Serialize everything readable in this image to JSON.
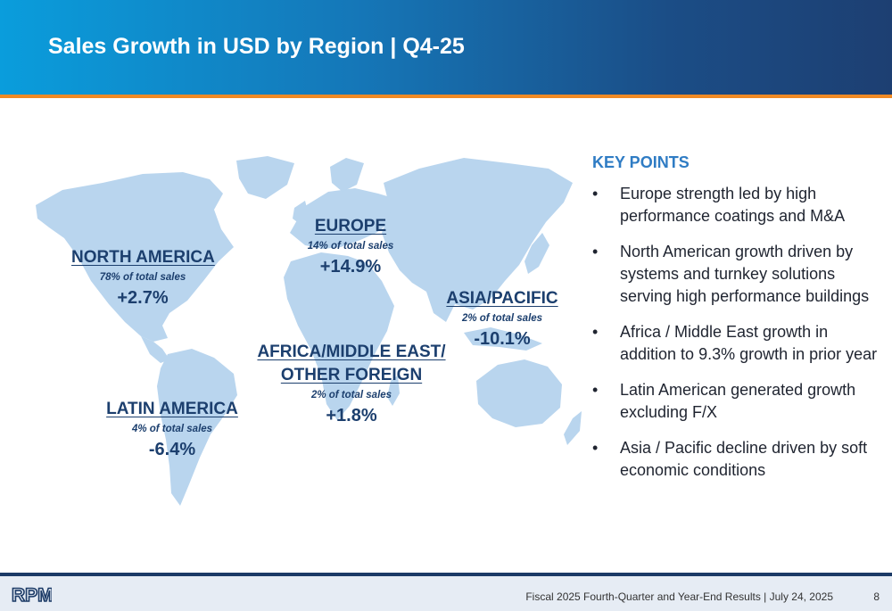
{
  "header": {
    "title": "Sales Growth in USD by Region | Q4-25"
  },
  "regions": [
    {
      "name": "NORTH AMERICA",
      "share": "78% of total sales",
      "growth": "+2.7%"
    },
    {
      "name": "EUROPE",
      "share": "14% of total sales",
      "growth": "+14.9%"
    },
    {
      "name": "ASIA/PACIFIC",
      "share": "2% of total sales",
      "growth": "-10.1%"
    },
    {
      "name_line1": "AFRICA/MIDDLE EAST/",
      "name_line2": "OTHER FOREIGN",
      "share": "2% of total sales",
      "growth": "+1.8%"
    },
    {
      "name": "LATIN AMERICA",
      "share": "4% of total sales",
      "growth": "-6.4%"
    }
  ],
  "key_points": {
    "title": "KEY POINTS",
    "items": [
      "Europe strength led by high performance coatings and M&A",
      "North American growth driven by systems and turnkey solutions serving high performance buildings",
      "Africa / Middle East growth in addition to 9.3% growth in prior year",
      "Latin American generated growth excluding F/X",
      "Asia / Pacific decline driven by soft economic conditions"
    ]
  },
  "footer": {
    "logo_text": "RPM",
    "text": "Fiscal 2025 Fourth-Quarter and Year-End Results | July 24, 2025",
    "page": "8"
  },
  "colors": {
    "map": "#b9d5ee",
    "accent": "#f08a24",
    "region_text": "#1c3f6e",
    "kp_title": "#2f7cc4"
  }
}
